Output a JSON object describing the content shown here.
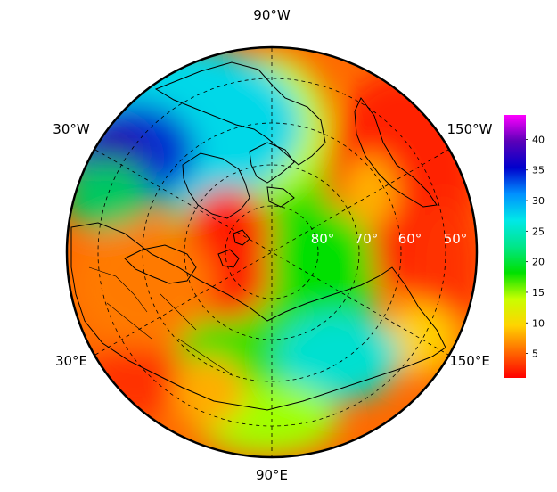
{
  "map": {
    "projection": "north-polar-stereographic",
    "longitude_labels": {
      "top": "90°W",
      "upper_left": "30°W",
      "upper_right": "150°W",
      "lower_left": "30°E",
      "lower_right": "150°E",
      "bottom": "90°E"
    },
    "latitude_labels": [
      "80°",
      "70°",
      "60°",
      "50°"
    ],
    "graticule": "dashed",
    "coastlines": "black",
    "colormap": [
      "#ff0000",
      "#ff6a00",
      "#ffd400",
      "#c8ff00",
      "#00e000",
      "#00e68a",
      "#00e8e8",
      "#0090ff",
      "#0000cc",
      "#5b00b8",
      "#ff00ff"
    ]
  },
  "colorbar": {
    "ticks": [
      "5",
      "10",
      "15",
      "20",
      "25",
      "30",
      "35",
      "40"
    ],
    "min": 1,
    "max": 44
  }
}
